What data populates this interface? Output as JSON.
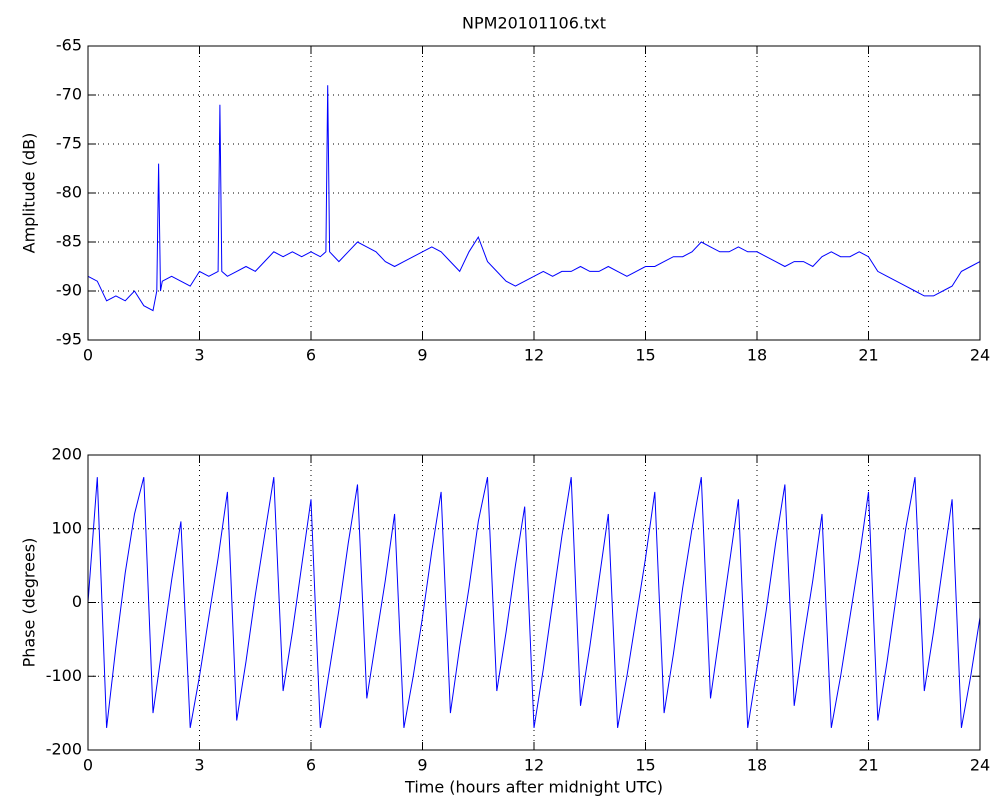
{
  "chart_data": [
    {
      "type": "line",
      "title": "NPM20101106.txt",
      "ylabel": "Amplitude (dB)",
      "color": "#0000ff",
      "x": [
        0,
        0.25,
        0.5,
        0.75,
        1,
        1.25,
        1.5,
        1.75,
        1.85,
        1.9,
        1.95,
        2,
        2.25,
        2.5,
        2.75,
        3,
        3.25,
        3.5,
        3.55,
        3.6,
        3.75,
        4,
        4.25,
        4.5,
        4.75,
        5,
        5.25,
        5.5,
        5.75,
        6,
        6.25,
        6.4,
        6.45,
        6.5,
        6.75,
        7,
        7.25,
        7.5,
        7.75,
        8,
        8.25,
        8.5,
        8.75,
        9,
        9.25,
        9.5,
        9.75,
        10,
        10.25,
        10.5,
        10.75,
        11,
        11.25,
        11.5,
        11.75,
        12,
        12.25,
        12.5,
        12.75,
        13,
        13.25,
        13.5,
        13.75,
        14,
        14.25,
        14.5,
        14.75,
        15,
        15.25,
        15.5,
        15.75,
        16,
        16.25,
        16.5,
        16.75,
        17,
        17.25,
        17.5,
        17.75,
        18,
        18.25,
        18.5,
        18.75,
        19,
        19.25,
        19.5,
        19.75,
        20,
        20.25,
        20.5,
        20.75,
        21,
        21.25,
        21.5,
        21.75,
        22,
        22.25,
        22.5,
        22.75,
        23,
        23.25,
        23.5,
        23.75,
        24
      ],
      "values": [
        -88.5,
        -89,
        -91,
        -90.5,
        -91,
        -90,
        -91.5,
        -92,
        -90,
        -77,
        -90,
        -89,
        -88.5,
        -89,
        -89.5,
        -88,
        -88.5,
        -88,
        -71,
        -88,
        -88.5,
        -88,
        -87.5,
        -88,
        -87,
        -86,
        -86.5,
        -86,
        -86.5,
        -86,
        -86.5,
        -86,
        -69,
        -86,
        -87,
        -86,
        -85,
        -85.5,
        -86,
        -87,
        -87.5,
        -87,
        -86.5,
        -86,
        -85.5,
        -86,
        -87,
        -88,
        -86,
        -84.5,
        -87,
        -88,
        -89,
        -89.5,
        -89,
        -88.5,
        -88,
        -88.5,
        -88,
        -88,
        -87.5,
        -88,
        -88,
        -87.5,
        -88,
        -88.5,
        -88,
        -87.5,
        -87.5,
        -87,
        -86.5,
        -86.5,
        -86,
        -85,
        -85.5,
        -86,
        -86,
        -85.5,
        -86,
        -86,
        -86.5,
        -87,
        -87.5,
        -87,
        -87,
        -87.5,
        -86.5,
        -86,
        -86.5,
        -86.5,
        -86,
        -86.5,
        -88,
        -88.5,
        -89,
        -89.5,
        -90,
        -90.5,
        -90.5,
        -90,
        -89.5,
        -88,
        -87.5,
        -87
      ],
      "xlim": [
        0,
        24
      ],
      "xticks": [
        0,
        3,
        6,
        9,
        12,
        15,
        18,
        21,
        24
      ],
      "ylim": [
        -95,
        -65
      ],
      "yticks": [
        -95,
        -90,
        -85,
        -80,
        -75,
        -70,
        -65
      ],
      "grid": true
    },
    {
      "type": "line",
      "ylabel": "Phase (degrees)",
      "xlabel": "Time (hours after midnight UTC)",
      "color": "#0000ff",
      "x": [
        0,
        0.25,
        0.5,
        0.75,
        1,
        1.25,
        1.5,
        1.75,
        2,
        2.25,
        2.5,
        2.75,
        3,
        3.25,
        3.5,
        3.75,
        4,
        4.25,
        4.5,
        4.75,
        5,
        5.25,
        5.5,
        5.75,
        6,
        6.25,
        6.5,
        6.75,
        7,
        7.25,
        7.5,
        7.75,
        8,
        8.25,
        8.5,
        8.75,
        9,
        9.25,
        9.5,
        9.75,
        10,
        10.25,
        10.5,
        10.75,
        11,
        11.25,
        11.5,
        11.75,
        12,
        12.25,
        12.5,
        12.75,
        13,
        13.25,
        13.5,
        13.75,
        14,
        14.25,
        14.5,
        14.75,
        15,
        15.25,
        15.5,
        15.75,
        16,
        16.25,
        16.5,
        16.75,
        17,
        17.25,
        17.5,
        17.75,
        18,
        18.25,
        18.5,
        18.75,
        19,
        19.25,
        19.5,
        19.75,
        20,
        20.25,
        20.5,
        20.75,
        21,
        21.25,
        21.5,
        21.75,
        22,
        22.25,
        22.5,
        22.75,
        23,
        23.25,
        23.5,
        23.75,
        24
      ],
      "values": [
        0,
        170,
        -170,
        -60,
        40,
        120,
        170,
        -150,
        -60,
        30,
        110,
        -170,
        -100,
        -20,
        60,
        150,
        -160,
        -80,
        10,
        90,
        170,
        -120,
        -40,
        50,
        140,
        -170,
        -90,
        -10,
        80,
        160,
        -130,
        -50,
        30,
        120,
        -170,
        -100,
        -20,
        70,
        150,
        -150,
        -60,
        20,
        110,
        170,
        -120,
        -40,
        50,
        130,
        -170,
        -90,
        0,
        90,
        170,
        -140,
        -60,
        30,
        120,
        -170,
        -100,
        -20,
        60,
        150,
        -150,
        -70,
        20,
        100,
        170,
        -130,
        -40,
        50,
        140,
        -170,
        -90,
        -10,
        80,
        160,
        -140,
        -50,
        30,
        120,
        -170,
        -100,
        -20,
        60,
        150,
        -160,
        -80,
        10,
        100,
        170,
        -120,
        -40,
        50,
        140,
        -170,
        -100,
        -20
      ],
      "xlim": [
        0,
        24
      ],
      "xticks": [
        0,
        3,
        6,
        9,
        12,
        15,
        18,
        21,
        24
      ],
      "ylim": [
        -200,
        200
      ],
      "yticks": [
        -200,
        -100,
        0,
        100,
        200
      ],
      "grid": true
    }
  ]
}
